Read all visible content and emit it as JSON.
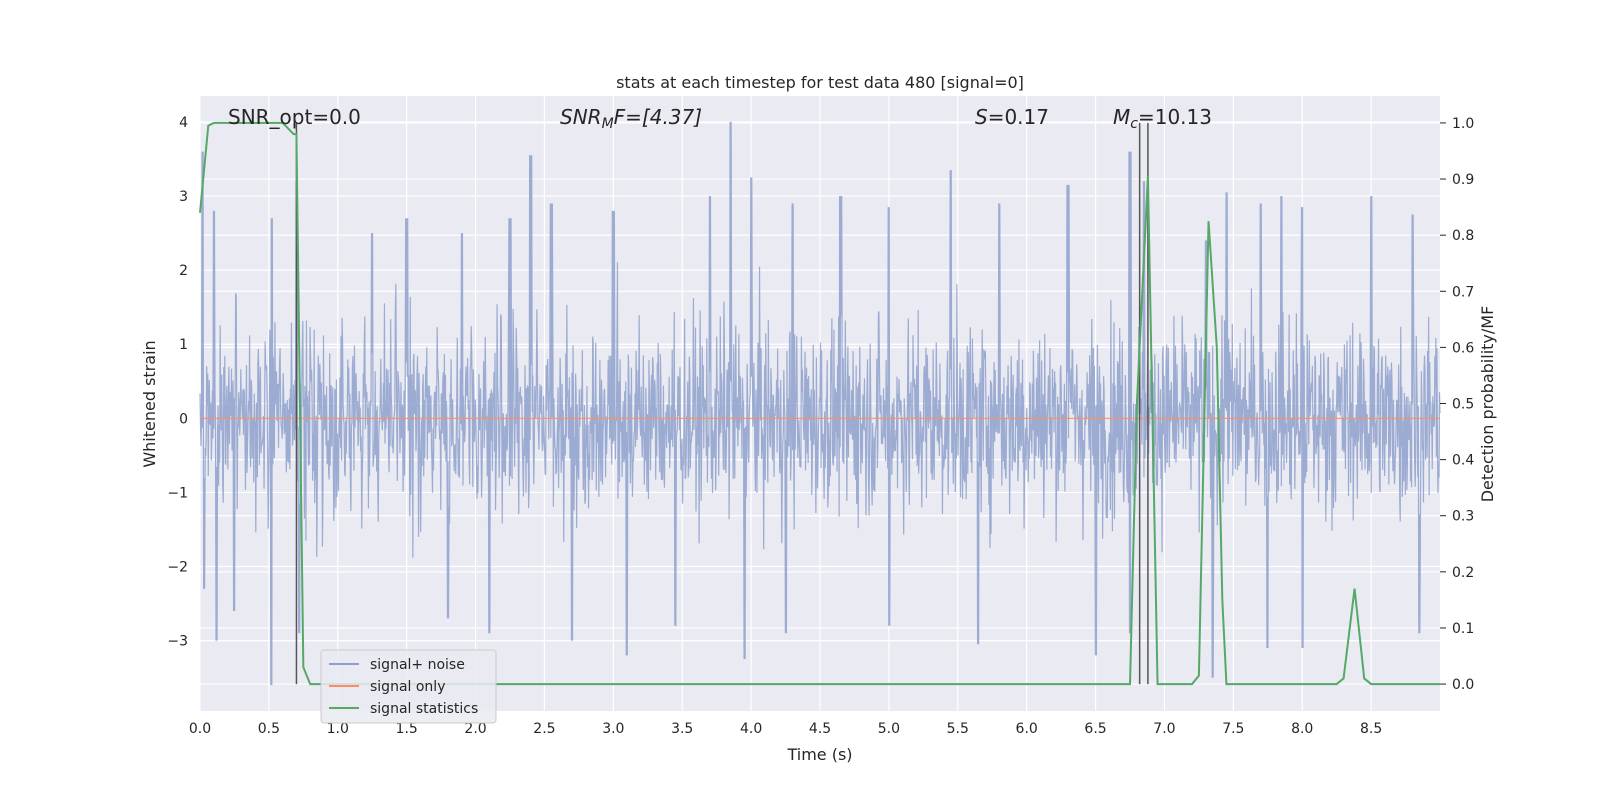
{
  "chart_data": {
    "type": "line",
    "title": "stats at each timestep for test data 480 [signal=0]",
    "xlabel": "Time (s)",
    "ylabel_left": "Whitened strain",
    "ylabel_right": "Detection probability/MF",
    "xlim": [
      0.0,
      9.0
    ],
    "ylim_left": [
      -3.95,
      4.35
    ],
    "ylim_right": [
      -0.048,
      1.048
    ],
    "x_ticks": [
      "0.0",
      "0.5",
      "1.0",
      "1.5",
      "2.0",
      "2.5",
      "3.0",
      "3.5",
      "4.0",
      "4.5",
      "5.0",
      "5.5",
      "6.0",
      "6.5",
      "7.0",
      "7.5",
      "8.0",
      "8.5"
    ],
    "y_ticks_left": [
      "4",
      "3",
      "2",
      "1",
      "0",
      "−1",
      "−2",
      "−3"
    ],
    "y_ticks_right": [
      "1.0",
      "0.9",
      "0.8",
      "0.7",
      "0.6",
      "0.5",
      "0.4",
      "0.3",
      "0.2",
      "0.1",
      "0.0"
    ],
    "grid": true,
    "legend_position": "lower-left",
    "annotations": {
      "snr_opt": "SNR_opt=0.0",
      "snr_mf_base": "SNR",
      "snr_mf_sub": "M",
      "snr_mf_rest": "F=[4.37]",
      "s_italic": "S",
      "s_rest": "=0.17",
      "mc_italic": "M",
      "mc_sub": "c",
      "mc_rest": "=10.13"
    },
    "series": [
      {
        "name": "signal+ noise",
        "color": "#8da0cb",
        "description_values": "noisy strain, approx. within [-3.6, 4.0]",
        "envelope_peaks": [
          [
            0.02,
            3.6
          ],
          [
            0.1,
            2.8
          ],
          [
            0.52,
            2.7
          ],
          [
            0.7,
            3.2
          ],
          [
            1.25,
            2.5
          ],
          [
            1.5,
            2.7
          ],
          [
            1.9,
            2.5
          ],
          [
            2.25,
            2.7
          ],
          [
            2.4,
            3.55
          ],
          [
            2.55,
            2.9
          ],
          [
            3.0,
            2.8
          ],
          [
            3.7,
            3.0
          ],
          [
            3.85,
            4.0
          ],
          [
            4.0,
            3.25
          ],
          [
            4.3,
            2.9
          ],
          [
            4.65,
            3.0
          ],
          [
            5.0,
            2.85
          ],
          [
            5.45,
            3.35
          ],
          [
            5.8,
            2.9
          ],
          [
            6.3,
            3.15
          ],
          [
            6.75,
            3.6
          ],
          [
            6.85,
            3.2
          ],
          [
            7.3,
            2.4
          ],
          [
            7.45,
            3.05
          ],
          [
            7.7,
            2.9
          ],
          [
            7.85,
            3.0
          ],
          [
            8.0,
            2.85
          ],
          [
            8.5,
            3.0
          ],
          [
            8.8,
            2.75
          ]
        ],
        "envelope_troughs": [
          [
            0.03,
            -2.3
          ],
          [
            0.12,
            -3.0
          ],
          [
            0.25,
            -2.6
          ],
          [
            0.52,
            -3.6
          ],
          [
            0.72,
            -2.9
          ],
          [
            1.8,
            -2.7
          ],
          [
            2.1,
            -2.9
          ],
          [
            2.7,
            -3.0
          ],
          [
            3.1,
            -3.2
          ],
          [
            3.45,
            -2.8
          ],
          [
            3.95,
            -3.25
          ],
          [
            4.25,
            -2.9
          ],
          [
            5.0,
            -2.8
          ],
          [
            5.65,
            -3.05
          ],
          [
            6.5,
            -3.2
          ],
          [
            6.75,
            -2.9
          ],
          [
            7.35,
            -3.5
          ],
          [
            7.75,
            -3.1
          ],
          [
            8.0,
            -3.1
          ],
          [
            8.85,
            -2.9
          ]
        ]
      },
      {
        "name": "signal only",
        "color": "#fc8d62",
        "x": [
          0.0,
          9.0
        ],
        "y": [
          0.0,
          0.0
        ]
      },
      {
        "name": "signal statistics",
        "color": "#55a868",
        "axis": "right",
        "x": [
          0.0,
          0.06,
          0.1,
          0.15,
          0.4,
          0.6,
          0.68,
          0.7,
          0.75,
          0.8,
          0.85,
          6.7,
          6.75,
          6.8,
          6.88,
          6.95,
          7.0,
          7.2,
          7.25,
          7.32,
          7.38,
          7.42,
          7.45,
          7.5,
          8.25,
          8.3,
          8.38,
          8.45,
          8.5,
          9.0
        ],
        "y": [
          0.84,
          0.995,
          1.0,
          1.0,
          1.0,
          1.0,
          0.98,
          0.98,
          0.03,
          0.0,
          0.0,
          0.0,
          0.0,
          0.5,
          0.905,
          0.0,
          0.0,
          0.0,
          0.015,
          0.825,
          0.6,
          0.15,
          0.0,
          0.0,
          0.0,
          0.01,
          0.17,
          0.01,
          0.0,
          0.0
        ]
      }
    ],
    "vlines": [
      0.7,
      6.82,
      6.88
    ]
  }
}
